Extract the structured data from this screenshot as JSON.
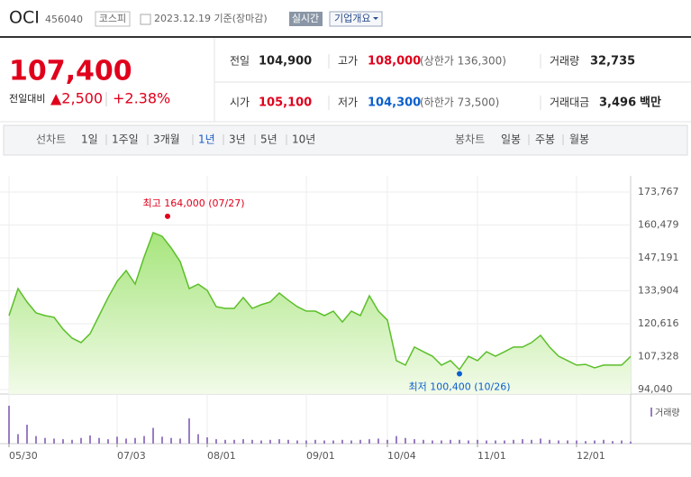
{
  "header": {
    "name": "OCI",
    "code": "456040",
    "market": "코스피",
    "date": "2023.12.19 기준(장마감)",
    "realtime": "실시간",
    "company_info": "기업개요"
  },
  "price": {
    "current": "107,400",
    "change_label": "전일대비",
    "change": "▲2,500",
    "change_rate": "+2.38%"
  },
  "quote_table": {
    "rows": [
      [
        {
          "label": "전일",
          "value": "104,900",
          "color": "#222"
        },
        {
          "label": "고가",
          "value": "108,000",
          "extra": "(상한가 136,300)",
          "color": "#e0001c"
        },
        {
          "label": "거래량",
          "value": "32,735",
          "color": "#222"
        }
      ],
      [
        {
          "label": "시가",
          "value": "105,100",
          "color": "#e0001c"
        },
        {
          "label": "저가",
          "value": "104,300",
          "extra": "(하한가 73,500)",
          "color": "#0c5fcd"
        },
        {
          "label": "거래대금",
          "value": "3,496",
          "unit": "백만",
          "color": "#222"
        }
      ]
    ]
  },
  "tabs": {
    "line_label": "선차트",
    "line": [
      "1일",
      "1주일",
      "3개월",
      "1년",
      "3년",
      "5년",
      "10년"
    ],
    "candle_label": "봉차트",
    "candle": [
      "일봉",
      "주봉",
      "월봉"
    ]
  },
  "chart_data": {
    "type": "area",
    "color": "#5cbf2a",
    "categories": [
      "05/30",
      null,
      null,
      null,
      null,
      null,
      null,
      null,
      null,
      null,
      null,
      null,
      "07/03",
      null,
      null,
      null,
      null,
      null,
      null,
      null,
      null,
      null,
      "08/01",
      null,
      null,
      null,
      null,
      null,
      null,
      null,
      null,
      null,
      null,
      "09/01",
      null,
      null,
      null,
      null,
      null,
      null,
      null,
      null,
      "10/04",
      null,
      null,
      null,
      null,
      null,
      null,
      null,
      null,
      null,
      "11/01",
      null,
      null,
      null,
      null,
      null,
      null,
      null,
      null,
      null,
      null,
      "12/01",
      null,
      null,
      null,
      null,
      null,
      null
    ],
    "values": [
      123900,
      134800,
      129400,
      125000,
      123900,
      123200,
      118400,
      114800,
      113000,
      116600,
      123900,
      131200,
      137700,
      142100,
      136600,
      147600,
      157400,
      155900,
      151200,
      145700,
      134800,
      136600,
      134100,
      127500,
      126800,
      126800,
      131200,
      126800,
      128300,
      129400,
      133000,
      130100,
      127500,
      125700,
      125700,
      123900,
      125700,
      121300,
      125700,
      123900,
      131900,
      125700,
      122100,
      105700,
      103900,
      111200,
      109300,
      107500,
      103900,
      105700,
      102100,
      107500,
      105700,
      109300,
      107500,
      109300,
      111200,
      111200,
      113000,
      115900,
      111200,
      107500,
      105700,
      103900,
      104200,
      102800,
      103900,
      103900,
      103900,
      107400
    ],
    "volume": {
      "name": "거래량",
      "color": "#9a7cc4",
      "values": [
        600000,
        150000,
        300000,
        120000,
        90000,
        80000,
        70000,
        60000,
        90000,
        130000,
        90000,
        70000,
        110000,
        80000,
        90000,
        120000,
        250000,
        110000,
        90000,
        80000,
        400000,
        150000,
        100000,
        70000,
        60000,
        60000,
        70000,
        60000,
        50000,
        60000,
        70000,
        60000,
        50000,
        50000,
        60000,
        50000,
        50000,
        60000,
        50000,
        60000,
        70000,
        80000,
        60000,
        120000,
        90000,
        70000,
        60000,
        50000,
        50000,
        60000,
        60000,
        50000,
        60000,
        50000,
        50000,
        50000,
        60000,
        70000,
        60000,
        80000,
        60000,
        50000,
        50000,
        50000,
        40000,
        50000,
        60000,
        40000,
        50000,
        32735
      ]
    },
    "ylim": [
      94040,
      173767
    ],
    "yticks": [
      {
        "value": 94040,
        "label": "94,040"
      },
      {
        "value": 107328,
        "label": "107,328"
      },
      {
        "value": 120616,
        "label": "120,616"
      },
      {
        "value": 133904,
        "label": "133,904"
      },
      {
        "value": 147191,
        "label": "147,191"
      },
      {
        "value": 160479,
        "label": "160,479"
      },
      {
        "value": 173767,
        "label": "173,767"
      }
    ],
    "annotations": [
      {
        "text": "최고 164,000 (07/27)",
        "value": 164000,
        "color": "#e0001c"
      },
      {
        "text": "최저 100,400 (10/26)",
        "value": 100400,
        "color": "#0c5fcd"
      }
    ],
    "grid": true
  }
}
